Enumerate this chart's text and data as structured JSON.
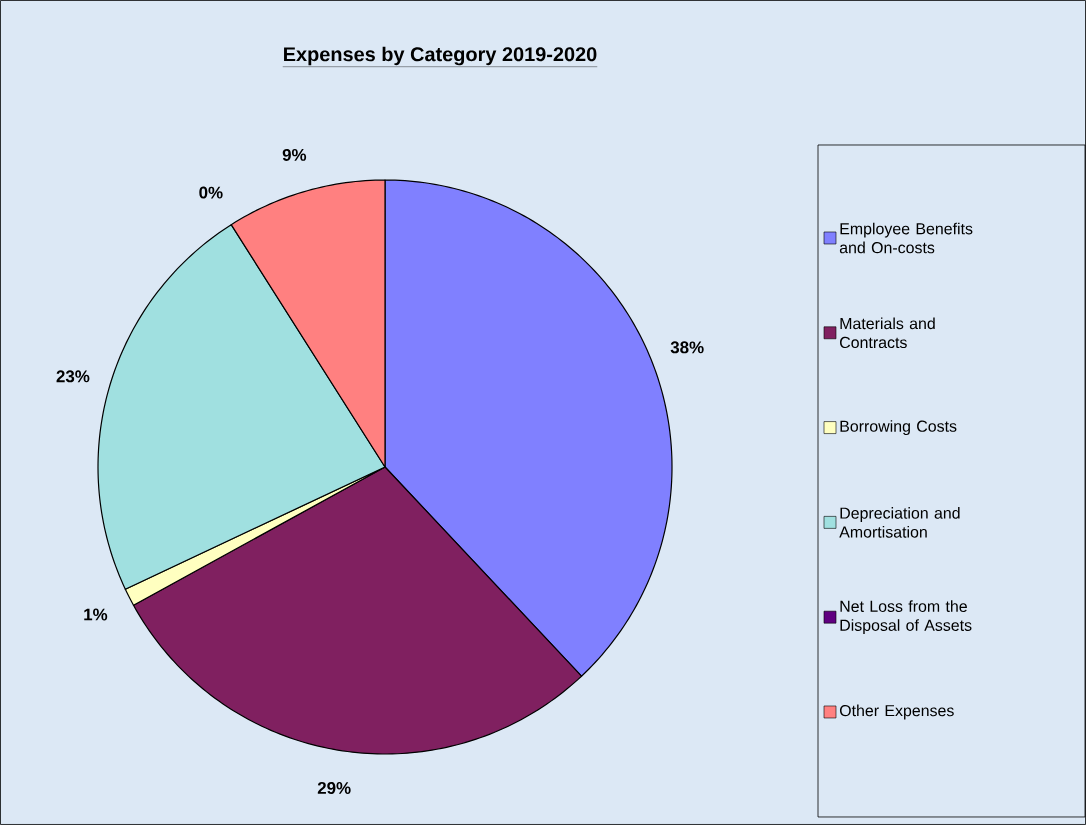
{
  "chart_data": {
    "type": "pie",
    "title": "Expenses by Category 2019-2020",
    "categories": [
      "Employee Benefits and On-costs",
      "Materials and Contracts",
      "Borrowing Costs",
      "Depreciation and Amortisation",
      "Net Loss from the Disposal of Assets",
      "Other Expenses"
    ],
    "values": [
      38,
      29,
      1,
      23,
      0,
      9
    ],
    "value_labels": [
      "38%",
      "29%",
      "1%",
      "23%",
      "0%",
      "9%"
    ],
    "colors": [
      "#8080ff",
      "#802060",
      "#ffffc0",
      "#a0e0e0",
      "#600080",
      "#ff8080"
    ],
    "legend": "right"
  }
}
